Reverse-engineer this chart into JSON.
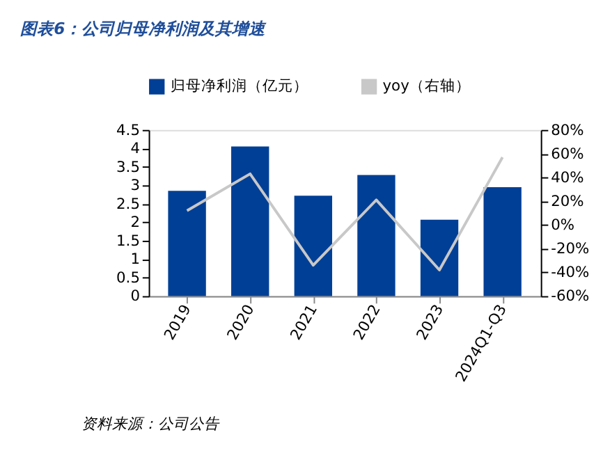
{
  "chart_data": {
    "type": "bar",
    "title": "图表6：公司归母净利润及其增速",
    "categories": [
      "2019",
      "2020",
      "2021",
      "2022",
      "2023",
      "2024Q1-Q3"
    ],
    "series": [
      {
        "name": "归母净利润（亿元）",
        "color": "#003f96",
        "values": [
          2.85,
          4.05,
          2.72,
          3.28,
          2.07,
          2.95
        ]
      },
      {
        "name": "yoy（右轴）",
        "type": "line",
        "axis": "y2",
        "color": "#c8c8c8",
        "values": [
          12,
          43,
          -34,
          21,
          -38,
          57
        ]
      }
    ],
    "ylim": [
      0,
      4.5
    ],
    "yticks": [
      0,
      0.5,
      1,
      1.5,
      2,
      2.5,
      3,
      3.5,
      4,
      4.5
    ],
    "y2lim": [
      -60,
      80
    ],
    "y2ticks": [
      {
        "value": -60,
        "label": "-60%"
      },
      {
        "value": -40,
        "label": "-40%"
      },
      {
        "value": -20,
        "label": "-20%"
      },
      {
        "value": 0,
        "label": "0%"
      },
      {
        "value": 20,
        "label": "20%"
      },
      {
        "value": 40,
        "label": "40%"
      },
      {
        "value": 60,
        "label": "60%"
      },
      {
        "value": 80,
        "label": "80%"
      }
    ],
    "grid": false,
    "legend": "top",
    "annotations": [
      "资料来源：公司公告"
    ]
  }
}
